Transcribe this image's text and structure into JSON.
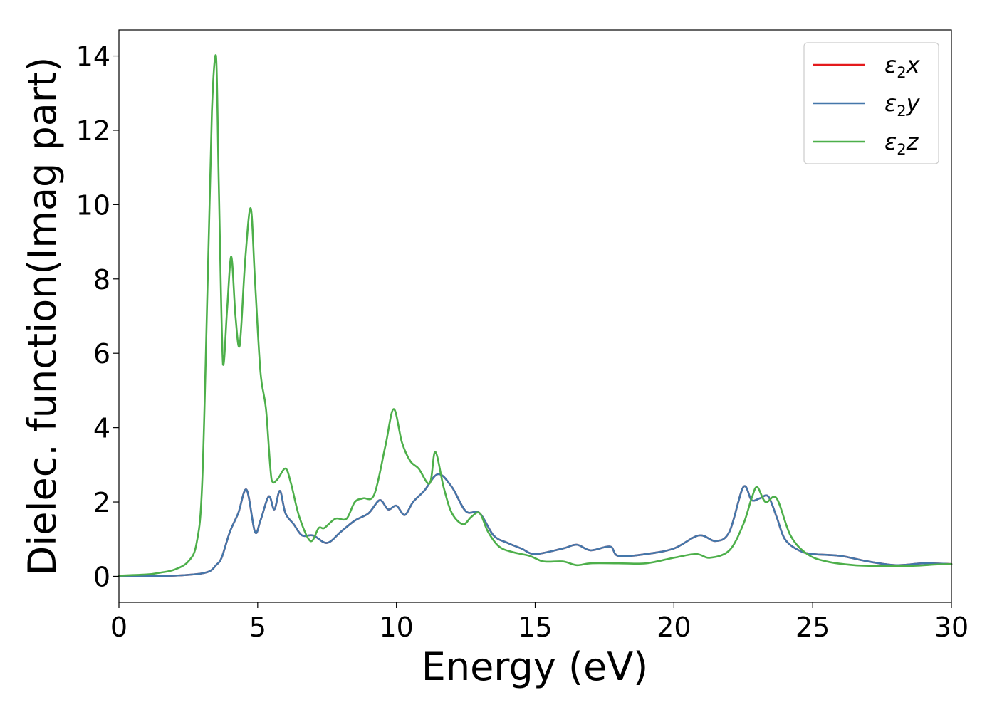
{
  "chart_data": {
    "type": "line",
    "xlabel": "Energy (eV)",
    "ylabel": "Dielec. function(Imag part)",
    "xlim": [
      0,
      30
    ],
    "ylim": [
      -0.7,
      14.7
    ],
    "xticks": [
      0,
      5,
      10,
      15,
      20,
      25,
      30
    ],
    "yticks": [
      0,
      2,
      4,
      6,
      8,
      10,
      12,
      14
    ],
    "grid": false,
    "legend_position": "top-right",
    "series": [
      {
        "name": "ε₂x",
        "legend": {
          "base": "ε",
          "sub": "2",
          "suffix": "x"
        },
        "color": "#e41a1c",
        "x": [
          0,
          1,
          2,
          2.5,
          3,
          3.3,
          3.5,
          3.7,
          4,
          4.3,
          4.6,
          4.9,
          5.1,
          5.4,
          5.6,
          5.8,
          6.0,
          6.3,
          6.6,
          7,
          7.5,
          8,
          8.5,
          9,
          9.4,
          9.7,
          10,
          10.3,
          10.6,
          11,
          11.5,
          12,
          12.5,
          13,
          13.5,
          14,
          14.5,
          15,
          16,
          16.5,
          17,
          17.7,
          18,
          19,
          20,
          20.9,
          21.5,
          22,
          22.5,
          22.8,
          23.1,
          23.4,
          23.7,
          24,
          24.5,
          25,
          26,
          27,
          28,
          29,
          30
        ],
        "y": [
          0.0,
          0.01,
          0.02,
          0.04,
          0.08,
          0.15,
          0.3,
          0.5,
          1.2,
          1.7,
          2.33,
          1.2,
          1.5,
          2.15,
          1.8,
          2.3,
          1.7,
          1.4,
          1.1,
          1.1,
          0.9,
          1.2,
          1.5,
          1.7,
          2.05,
          1.8,
          1.9,
          1.65,
          2.0,
          2.3,
          2.75,
          2.4,
          1.75,
          1.7,
          1.1,
          0.9,
          0.75,
          0.6,
          0.75,
          0.85,
          0.7,
          0.8,
          0.55,
          0.6,
          0.75,
          1.1,
          0.95,
          1.2,
          2.4,
          2.05,
          2.1,
          2.15,
          1.6,
          1.0,
          0.7,
          0.6,
          0.55,
          0.4,
          0.3,
          0.35,
          0.33
        ]
      },
      {
        "name": "ε₂y",
        "legend": {
          "base": "ε",
          "sub": "2",
          "suffix": "y"
        },
        "color": "#4477aa",
        "x": [
          0,
          1,
          2,
          2.5,
          3,
          3.3,
          3.5,
          3.7,
          4,
          4.3,
          4.6,
          4.9,
          5.1,
          5.4,
          5.6,
          5.8,
          6.0,
          6.3,
          6.6,
          7,
          7.5,
          8,
          8.5,
          9,
          9.4,
          9.7,
          10,
          10.3,
          10.6,
          11,
          11.5,
          12,
          12.5,
          13,
          13.5,
          14,
          14.5,
          15,
          16,
          16.5,
          17,
          17.7,
          18,
          19,
          20,
          20.9,
          21.5,
          22,
          22.5,
          22.8,
          23.1,
          23.4,
          23.7,
          24,
          24.5,
          25,
          26,
          27,
          28,
          29,
          30
        ],
        "y": [
          0.0,
          0.01,
          0.02,
          0.04,
          0.08,
          0.15,
          0.3,
          0.5,
          1.2,
          1.7,
          2.33,
          1.2,
          1.5,
          2.15,
          1.8,
          2.3,
          1.7,
          1.4,
          1.1,
          1.1,
          0.9,
          1.2,
          1.5,
          1.7,
          2.05,
          1.8,
          1.9,
          1.65,
          2.0,
          2.3,
          2.75,
          2.4,
          1.75,
          1.7,
          1.1,
          0.9,
          0.75,
          0.6,
          0.75,
          0.85,
          0.7,
          0.8,
          0.55,
          0.6,
          0.75,
          1.1,
          0.95,
          1.2,
          2.4,
          2.05,
          2.1,
          2.15,
          1.6,
          1.0,
          0.7,
          0.6,
          0.55,
          0.4,
          0.3,
          0.35,
          0.33
        ]
      },
      {
        "name": "ε₂z",
        "legend": {
          "base": "ε",
          "sub": "2",
          "suffix": "z"
        },
        "color": "#4daf4a",
        "x": [
          0,
          1,
          1.5,
          2,
          2.5,
          2.8,
          3.0,
          3.2,
          3.35,
          3.5,
          3.6,
          3.75,
          3.9,
          4.05,
          4.2,
          4.35,
          4.55,
          4.75,
          4.9,
          5.1,
          5.3,
          5.5,
          5.7,
          6.0,
          6.2,
          6.5,
          6.9,
          7.2,
          7.4,
          7.8,
          8.2,
          8.5,
          8.8,
          9.2,
          9.6,
          9.9,
          10.2,
          10.5,
          10.8,
          11.2,
          11.4,
          11.7,
          12.0,
          12.4,
          12.7,
          13.0,
          13.3,
          13.7,
          14.2,
          14.8,
          15.3,
          16,
          16.5,
          17,
          18,
          19,
          20,
          20.8,
          21.3,
          22,
          22.5,
          22.8,
          23.0,
          23.3,
          23.7,
          24.2,
          24.8,
          25.5,
          26.5,
          27.5,
          28.5,
          29.5,
          30
        ],
        "y": [
          0.02,
          0.05,
          0.1,
          0.18,
          0.4,
          0.9,
          2.5,
          8.0,
          12.5,
          14.0,
          10.5,
          5.7,
          7.2,
          8.6,
          7.0,
          6.2,
          8.5,
          9.9,
          8.0,
          5.5,
          4.5,
          2.6,
          2.6,
          2.9,
          2.5,
          1.6,
          0.95,
          1.3,
          1.3,
          1.55,
          1.55,
          2.0,
          2.1,
          2.2,
          3.5,
          4.5,
          3.6,
          3.1,
          2.9,
          2.5,
          3.35,
          2.4,
          1.7,
          1.4,
          1.6,
          1.7,
          1.2,
          0.8,
          0.65,
          0.55,
          0.4,
          0.4,
          0.3,
          0.35,
          0.35,
          0.35,
          0.5,
          0.6,
          0.5,
          0.7,
          1.4,
          2.1,
          2.4,
          2.0,
          2.1,
          1.1,
          0.6,
          0.4,
          0.3,
          0.28,
          0.28,
          0.32,
          0.33
        ]
      }
    ]
  }
}
